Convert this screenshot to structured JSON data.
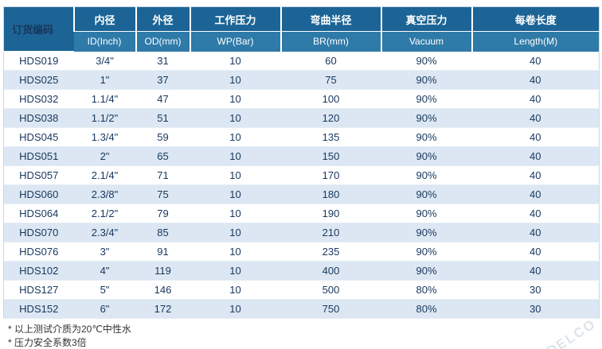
{
  "table": {
    "columns": [
      {
        "cn": "订货编码",
        "en": ""
      },
      {
        "cn": "内径",
        "en": "ID(Inch)"
      },
      {
        "cn": "外径",
        "en": "OD(mm)"
      },
      {
        "cn": "工作压力",
        "en": "WP(Bar)"
      },
      {
        "cn": "弯曲半径",
        "en": "BR(mm)"
      },
      {
        "cn": "真空压力",
        "en": "Vacuum"
      },
      {
        "cn": "每卷长度",
        "en": "Length(M)"
      }
    ],
    "rows": [
      [
        "HDS019",
        "3/4\"",
        "31",
        "10",
        "60",
        "90%",
        "40"
      ],
      [
        "HDS025",
        "1\"",
        "37",
        "10",
        "75",
        "90%",
        "40"
      ],
      [
        "HDS032",
        "1.1/4\"",
        "47",
        "10",
        "100",
        "90%",
        "40"
      ],
      [
        "HDS038",
        "1.1/2\"",
        "51",
        "10",
        "120",
        "90%",
        "40"
      ],
      [
        "HDS045",
        "1.3/4\"",
        "59",
        "10",
        "135",
        "90%",
        "40"
      ],
      [
        "HDS051",
        "2\"",
        "65",
        "10",
        "150",
        "90%",
        "40"
      ],
      [
        "HDS057",
        "2.1/4\"",
        "71",
        "10",
        "170",
        "90%",
        "40"
      ],
      [
        "HDS060",
        "2.3/8\"",
        "75",
        "10",
        "180",
        "90%",
        "40"
      ],
      [
        "HDS064",
        "2.1/2\"",
        "79",
        "10",
        "190",
        "90%",
        "40"
      ],
      [
        "HDS070",
        "2.3/4\"",
        "85",
        "10",
        "210",
        "90%",
        "40"
      ],
      [
        "HDS076",
        "3\"",
        "91",
        "10",
        "235",
        "90%",
        "40"
      ],
      [
        "HDS102",
        "4\"",
        "119",
        "10",
        "400",
        "90%",
        "40"
      ],
      [
        "HDS127",
        "5\"",
        "146",
        "10",
        "500",
        "80%",
        "30"
      ],
      [
        "HDS152",
        "6\"",
        "172",
        "10",
        "750",
        "80%",
        "30"
      ]
    ]
  },
  "notes": [
    "* 以上测试介质为20℃中性水",
    "* 压力安全系数3倍"
  ],
  "watermark": "DELCO",
  "colors": {
    "header_blue": "#1c6496",
    "subheader_blue": "#2e7aa9",
    "row_alt": "#dce7f3",
    "text_navy": "#17375e",
    "border_light": "#c9d6e4",
    "note_text": "#333333",
    "watermark_gray": "#c5cfd9"
  }
}
